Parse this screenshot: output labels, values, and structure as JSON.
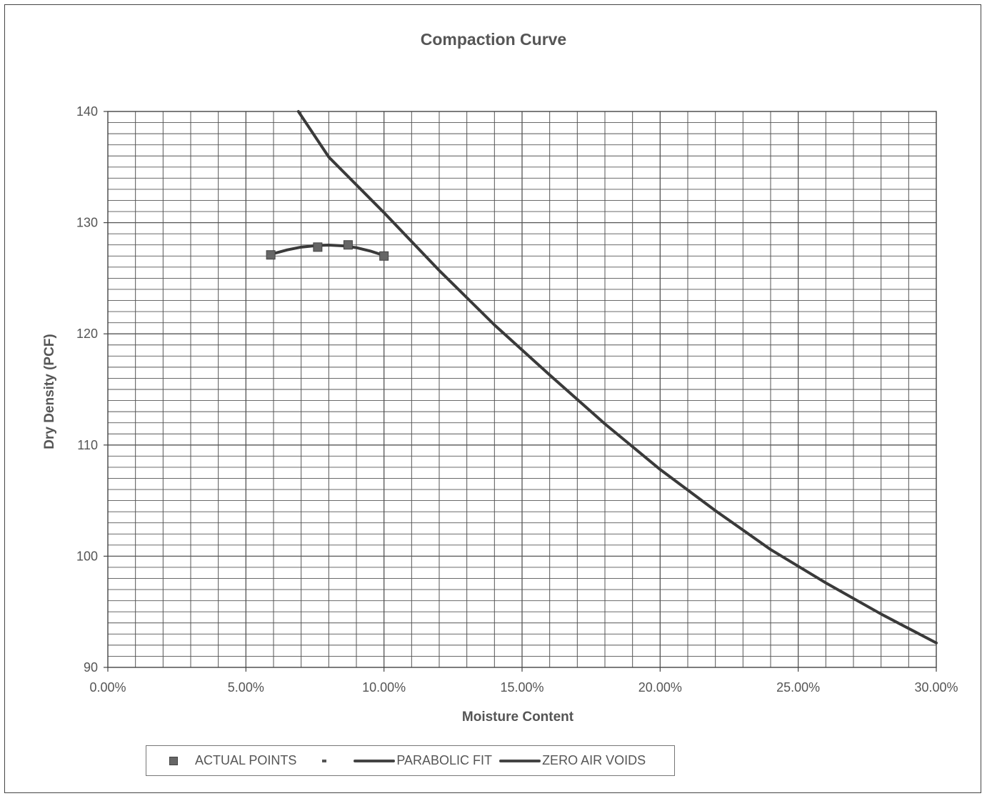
{
  "chart_data": {
    "type": "scatter",
    "title": "Compaction Curve",
    "xlabel": "Moisture Content",
    "ylabel": "Dry Density (PCF)",
    "xlim": [
      0.0,
      0.3
    ],
    "ylim": [
      90,
      140
    ],
    "x_ticks": [
      "0.00%",
      "5.00%",
      "10.00%",
      "15.00%",
      "20.00%",
      "25.00%",
      "30.00%"
    ],
    "y_ticks": [
      "90",
      "100",
      "110",
      "120",
      "130",
      "140"
    ],
    "grid": true,
    "legend_position": "bottom",
    "series": [
      {
        "name": "ACTUAL POINTS",
        "kind": "markers",
        "x": [
          0.059,
          0.076,
          0.087,
          0.1
        ],
        "y": [
          127.1,
          127.8,
          128.0,
          127.0
        ]
      },
      {
        "name": "PARABOLIC FIT",
        "kind": "line",
        "x": [
          0.059,
          0.065,
          0.07,
          0.076,
          0.08,
          0.085,
          0.09,
          0.095,
          0.1
        ],
        "y": [
          127.15,
          127.55,
          127.8,
          127.95,
          127.98,
          127.92,
          127.75,
          127.45,
          127.05
        ]
      },
      {
        "name": "ZERO AIR VOIDS",
        "kind": "line",
        "x": [
          0.069,
          0.08,
          0.1,
          0.12,
          0.14,
          0.16,
          0.18,
          0.2,
          0.22,
          0.24,
          0.26,
          0.28,
          0.3
        ],
        "y": [
          140.0,
          135.9,
          130.9,
          125.7,
          120.8,
          116.3,
          111.9,
          107.8,
          104.1,
          100.6,
          97.6,
          94.8,
          92.2
        ]
      }
    ]
  },
  "legend": {
    "actual_points": "ACTUAL POINTS",
    "parabolic_fit": "PARABOLIC FIT",
    "zero_air_voids": "ZERO AIR VOIDS"
  },
  "colors": {
    "line": "#3a3a3a",
    "marker": "#666666",
    "grid": "#555555",
    "text": "#555555"
  }
}
